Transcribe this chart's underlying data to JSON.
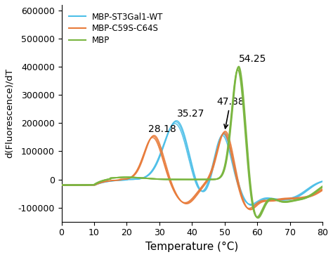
{
  "title": "",
  "xlabel": "Temperature (°C)",
  "ylabel": "d(Fluorescence)/dT",
  "xlim": [
    0,
    80
  ],
  "ylim": [
    -150000,
    620000
  ],
  "xticks": [
    0,
    10,
    20,
    30,
    40,
    50,
    60,
    70,
    80
  ],
  "yticks": [
    -100000,
    0,
    100000,
    200000,
    300000,
    400000,
    500000,
    600000
  ],
  "colors": {
    "blue": "#4DBFE8",
    "orange": "#E87B3A",
    "green": "#7AB640"
  },
  "legend_labels": [
    "MBP-ST3Gal1-WT",
    "MBP-C59S-C64S",
    "MBP"
  ],
  "background_color": "#ffffff",
  "figsize": [
    4.74,
    3.66
  ],
  "dpi": 100
}
